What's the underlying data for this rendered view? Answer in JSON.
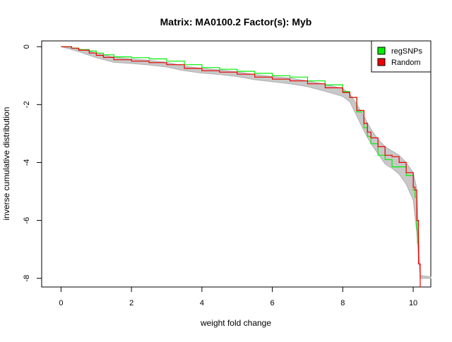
{
  "chart_data": {
    "type": "line",
    "title": "Matrix: MA0100.2 Factor(s): Myb",
    "xlabel": "weight fold change",
    "ylabel": "inverse cumulative distribution",
    "xlim": [
      -0.55,
      10.5
    ],
    "ylim": [
      -8.3,
      0.2
    ],
    "x_ticks": [
      0,
      2,
      4,
      6,
      8,
      10
    ],
    "y_ticks": [
      0,
      -2,
      -4,
      -6,
      -8
    ],
    "grid": false,
    "legend_position": "top-right",
    "legend": [
      {
        "label": "regSNPs",
        "color": "#00ee00"
      },
      {
        "label": "Random",
        "color": "#ee0000"
      }
    ],
    "series": [
      {
        "name": "regSNPs",
        "color": "#00ee00",
        "x": [
          0,
          0.2,
          0.3,
          0.5,
          0.8,
          1.0,
          1.2,
          1.5,
          2.0,
          2.5,
          3.0,
          3.5,
          4.0,
          4.5,
          5.0,
          5.5,
          6.0,
          6.5,
          7.0,
          7.5,
          8.0,
          8.2,
          8.4,
          8.6,
          8.7,
          8.8,
          9.0,
          9.2,
          9.4,
          9.6,
          9.8,
          10.0,
          10.05,
          10.1,
          10.12
        ],
        "y": [
          0,
          0,
          -0.05,
          -0.1,
          -0.15,
          -0.22,
          -0.28,
          -0.35,
          -0.38,
          -0.42,
          -0.5,
          -0.62,
          -0.72,
          -0.78,
          -0.85,
          -0.92,
          -1.0,
          -1.05,
          -1.18,
          -1.32,
          -1.55,
          -1.75,
          -2.25,
          -2.8,
          -3.1,
          -3.35,
          -3.75,
          -3.9,
          -4.15,
          -4.15,
          -4.45,
          -4.95,
          -5.2,
          -6.3,
          -6.8
        ]
      },
      {
        "name": "Random",
        "color": "#ee0000",
        "x": [
          0,
          0.2,
          0.3,
          0.5,
          0.8,
          1.0,
          1.2,
          1.5,
          2.0,
          2.5,
          3.0,
          3.5,
          4.0,
          4.5,
          5.0,
          5.5,
          6.0,
          6.5,
          7.0,
          7.5,
          8.0,
          8.2,
          8.4,
          8.6,
          8.7,
          8.8,
          9.0,
          9.2,
          9.4,
          9.6,
          9.8,
          10.0,
          10.05,
          10.1,
          10.15,
          10.2
        ],
        "y": [
          0,
          0,
          -0.05,
          -0.12,
          -0.22,
          -0.3,
          -0.37,
          -0.45,
          -0.5,
          -0.55,
          -0.62,
          -0.75,
          -0.83,
          -0.88,
          -0.95,
          -1.05,
          -1.12,
          -1.18,
          -1.28,
          -1.42,
          -1.58,
          -1.75,
          -2.2,
          -2.65,
          -2.95,
          -3.15,
          -3.45,
          -3.75,
          -3.8,
          -4.0,
          -4.35,
          -4.85,
          -4.95,
          -6.0,
          -7.5,
          -8.3
        ]
      }
    ],
    "random_band": {
      "color": "#c8c8c8",
      "x": [
        0,
        0.5,
        1.0,
        1.5,
        2.0,
        2.5,
        3.0,
        3.5,
        4.0,
        4.5,
        5.0,
        5.5,
        6.0,
        6.5,
        7.0,
        7.5,
        8.0,
        8.2,
        8.4,
        8.6,
        8.8,
        9.0,
        9.2,
        9.4,
        9.6,
        9.8,
        10.0,
        10.1,
        10.2,
        10.5
      ],
      "upper": [
        0,
        -0.07,
        -0.22,
        -0.36,
        -0.42,
        -0.47,
        -0.54,
        -0.67,
        -0.75,
        -0.8,
        -0.87,
        -0.96,
        -1.03,
        -1.08,
        -1.18,
        -1.3,
        -1.45,
        -1.62,
        -2.0,
        -2.4,
        -2.85,
        -3.2,
        -3.45,
        -3.6,
        -3.75,
        -4.0,
        -4.35,
        -4.9,
        -7.9,
        -7.95
      ],
      "lower": [
        0,
        -0.17,
        -0.38,
        -0.54,
        -0.58,
        -0.63,
        -0.7,
        -0.83,
        -0.91,
        -0.96,
        -1.03,
        -1.14,
        -1.21,
        -1.28,
        -1.38,
        -1.54,
        -1.72,
        -1.9,
        -2.4,
        -2.9,
        -3.35,
        -3.7,
        -4.05,
        -4.2,
        -4.4,
        -4.75,
        -5.3,
        -6.4,
        -8.0,
        -8.0
      ]
    }
  }
}
